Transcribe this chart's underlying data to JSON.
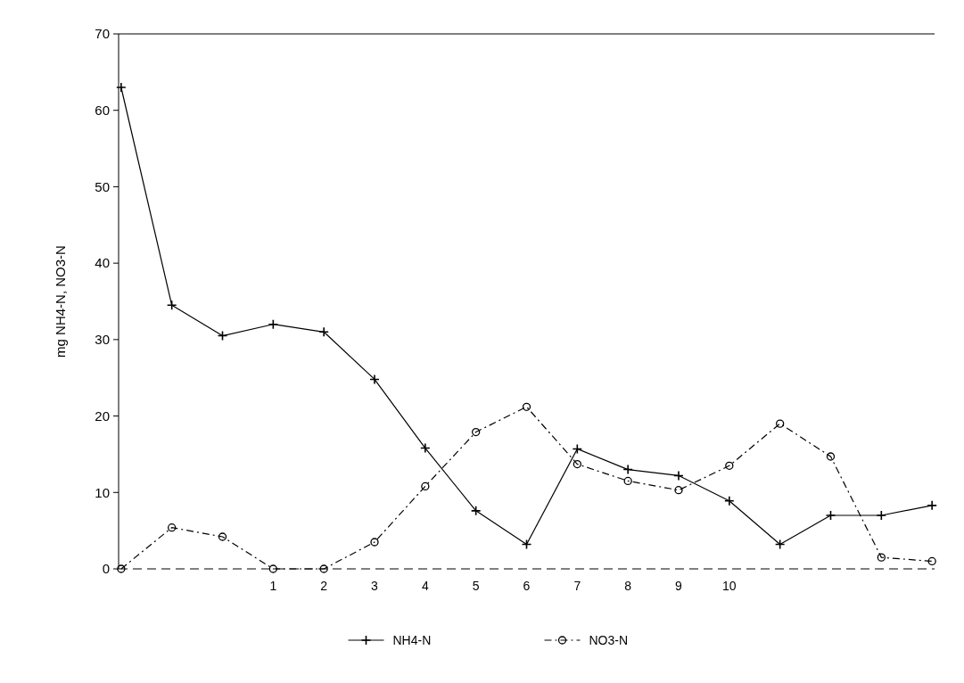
{
  "chart_data": {
    "type": "line",
    "ylabel": "mg NH4-N, NO3-N",
    "categories": [
      null,
      null,
      null,
      "1",
      "2",
      "3",
      "4",
      "5",
      "6",
      "7",
      "8",
      "9",
      "10",
      null,
      null,
      null,
      null
    ],
    "ylim": [
      0,
      70
    ],
    "yticks": [
      0,
      10,
      20,
      30,
      40,
      50,
      60,
      70
    ],
    "legend": "bottom",
    "grid": false,
    "series": [
      {
        "name": "NH4-N",
        "color": "#000000",
        "marker": "cross",
        "line_style": "solid",
        "values": [
          63,
          34.5,
          30.5,
          32,
          31,
          24.8,
          15.8,
          7.6,
          3.2,
          15.7,
          13.0,
          12.2,
          8.9,
          3.2,
          7.0,
          7.0,
          8.3
        ]
      },
      {
        "name": "NO3-N",
        "color": "#000000",
        "marker": "circle",
        "line_style": "dashed",
        "values": [
          0,
          5.4,
          4.2,
          0,
          0,
          3.5,
          10.8,
          17.9,
          21.2,
          13.7,
          11.5,
          10.3,
          13.5,
          19.0,
          14.7,
          1.5,
          1.0
        ]
      }
    ]
  }
}
